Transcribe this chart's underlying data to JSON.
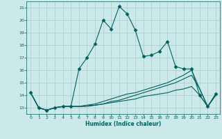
{
  "title": "",
  "xlabel": "Humidex (Indice chaleur)",
  "background_color": "#cce9e9",
  "grid_color": "#aacaca",
  "line_color": "#006060",
  "xlim": [
    -0.5,
    23.5
  ],
  "ylim": [
    12.5,
    21.5
  ],
  "xticks": [
    0,
    1,
    2,
    3,
    4,
    5,
    6,
    7,
    8,
    9,
    10,
    11,
    12,
    13,
    14,
    15,
    16,
    17,
    18,
    19,
    20,
    21,
    22,
    23
  ],
  "yticks": [
    13,
    14,
    15,
    16,
    17,
    18,
    19,
    20,
    21
  ],
  "series": [
    [
      14.2,
      13.0,
      12.8,
      13.0,
      13.1,
      13.1,
      16.1,
      17.0,
      18.1,
      20.0,
      19.3,
      21.1,
      20.5,
      19.2,
      17.1,
      17.2,
      17.5,
      18.3,
      16.3,
      16.1,
      16.1,
      14.0,
      13.1,
      14.1
    ],
    [
      14.2,
      13.0,
      12.8,
      13.0,
      13.1,
      13.1,
      13.1,
      13.2,
      13.2,
      13.3,
      13.5,
      13.6,
      13.8,
      14.0,
      14.2,
      14.4,
      14.6,
      14.8,
      15.0,
      15.3,
      15.6,
      14.5,
      13.1,
      14.0
    ],
    [
      14.2,
      13.0,
      12.8,
      13.0,
      13.1,
      13.1,
      13.1,
      13.2,
      13.3,
      13.5,
      13.7,
      13.9,
      14.1,
      14.2,
      14.4,
      14.6,
      14.8,
      15.0,
      15.3,
      15.6,
      16.0,
      14.5,
      13.1,
      14.1
    ],
    [
      14.2,
      13.0,
      12.8,
      13.0,
      13.1,
      13.1,
      13.1,
      13.1,
      13.2,
      13.3,
      13.4,
      13.5,
      13.6,
      13.7,
      13.9,
      14.0,
      14.1,
      14.2,
      14.4,
      14.5,
      14.7,
      14.0,
      13.1,
      14.0
    ]
  ],
  "marker_series": [
    0
  ],
  "marker": "D",
  "markersize": 2.5
}
